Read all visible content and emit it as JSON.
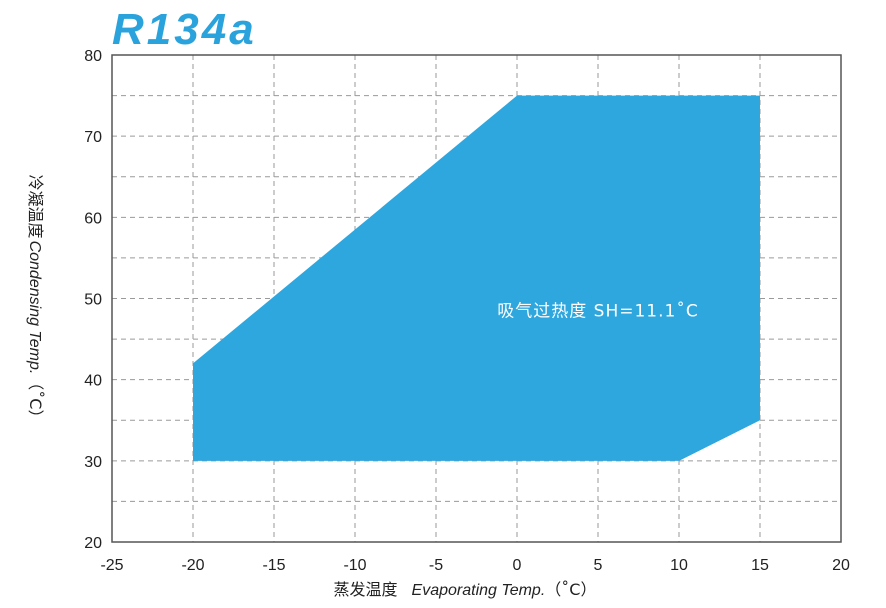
{
  "chart_data": {
    "type": "area",
    "title": "R134a",
    "xlabel_cn": "蒸发温度",
    "xlabel_en": "Evaporating Temp.",
    "xlabel_unit": "（˚C）",
    "ylabel_cn": "冷凝温度",
    "ylabel_en": "Condensing Temp.",
    "ylabel_unit": "（˚C）",
    "xlim": [
      -25,
      20
    ],
    "ylim": [
      20,
      80
    ],
    "x_ticks": [
      -25,
      -20,
      -15,
      -10,
      -5,
      0,
      5,
      10,
      15,
      20
    ],
    "y_ticks": [
      20,
      30,
      40,
      50,
      60,
      70,
      80
    ],
    "grid": true,
    "envelope": {
      "x": [
        -20,
        0,
        15,
        15,
        10,
        -20
      ],
      "y": [
        42,
        75,
        75,
        35,
        30,
        30
      ]
    },
    "annotation": "吸气过热度 SH=11.1˚C",
    "annotation_position": [
      5,
      48.5
    ]
  },
  "colors": {
    "title": "#2aa3dc",
    "fill": "#2ea6de",
    "grid": "#9a9a9a",
    "frame": "#555555",
    "text": "#222222"
  }
}
